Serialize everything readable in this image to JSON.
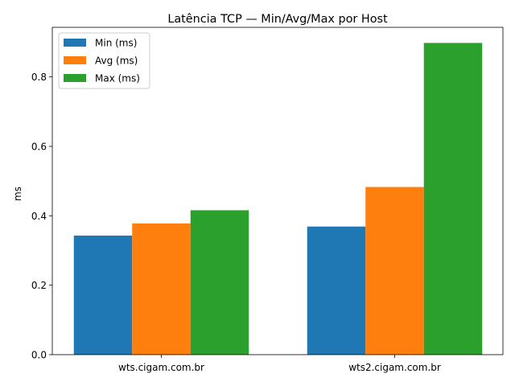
{
  "chart_data": {
    "type": "bar",
    "title": "Latência TCP — Min/Avg/Max por Host",
    "xlabel": "",
    "ylabel": "ms",
    "categories": [
      "wts.cigam.com.br",
      "wts2.cigam.com.br"
    ],
    "series": [
      {
        "name": "Min (ms)",
        "values": [
          0.343,
          0.369
        ],
        "color": "#1f77b4"
      },
      {
        "name": "Avg (ms)",
        "values": [
          0.378,
          0.483
        ],
        "color": "#ff7f0e"
      },
      {
        "name": "Max (ms)",
        "values": [
          0.416,
          0.898
        ],
        "color": "#2ca02c"
      }
    ],
    "ylim": [
      0,
      0.9429
    ],
    "yticks": [
      "0.0",
      "0.2",
      "0.4",
      "0.6",
      "0.8"
    ],
    "ytick_values": [
      0,
      0.2,
      0.4,
      0.6,
      0.8
    ],
    "grid": false,
    "legend_position": "top-left"
  }
}
